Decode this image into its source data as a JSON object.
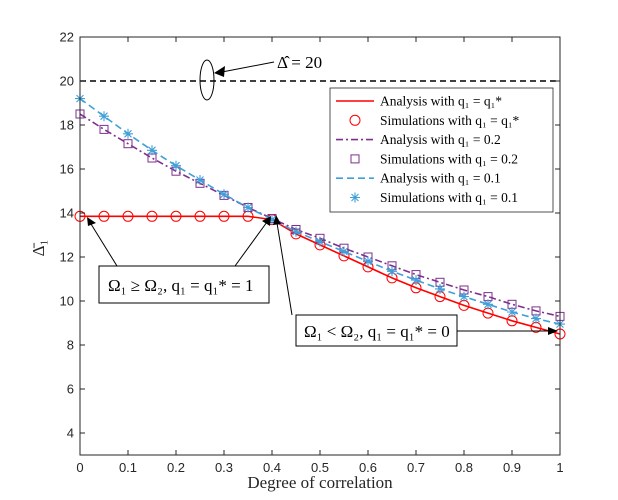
{
  "chart_data": {
    "type": "line",
    "title": "",
    "xlabel": "Degree of correlation",
    "ylabel": "Δ̄₁",
    "xlim": [
      0,
      1
    ],
    "ylim": [
      3,
      22
    ],
    "xticks": [
      "0",
      "0.1",
      "0.2",
      "0.3",
      "0.4",
      "0.5",
      "0.6",
      "0.7",
      "0.8",
      "0.9",
      "1"
    ],
    "yticks": [
      "4",
      "6",
      "8",
      "10",
      "12",
      "14",
      "16",
      "18",
      "20",
      "22"
    ],
    "grid": false,
    "legend_position": "top-right",
    "reference_line": {
      "y": 20,
      "label": "Δ̂ = 20"
    },
    "x": [
      0,
      0.05,
      0.1,
      0.15,
      0.2,
      0.25,
      0.3,
      0.35,
      0.4,
      0.45,
      0.5,
      0.55,
      0.6,
      0.65,
      0.7,
      0.75,
      0.8,
      0.85,
      0.9,
      0.95,
      1
    ],
    "series": [
      {
        "name": "Analysis with q₁ = q₁*",
        "kind": "line",
        "color": "#ff0000",
        "dash": "solid",
        "values": [
          13.85,
          13.85,
          13.85,
          13.85,
          13.85,
          13.85,
          13.85,
          13.85,
          13.7,
          13.05,
          12.55,
          12.05,
          11.55,
          11.05,
          10.6,
          10.2,
          9.8,
          9.45,
          9.1,
          8.8,
          8.5
        ]
      },
      {
        "name": "Simulations with q₁ = q₁*",
        "kind": "marker",
        "marker": "circle",
        "color": "#ff0000",
        "values": [
          13.85,
          13.85,
          13.85,
          13.85,
          13.85,
          13.85,
          13.85,
          13.85,
          13.7,
          13.05,
          12.55,
          12.05,
          11.55,
          11.05,
          10.6,
          10.2,
          9.8,
          9.45,
          9.1,
          8.8,
          8.5
        ]
      },
      {
        "name": "Analysis with q₁ = 0.2",
        "kind": "line",
        "color": "#7e2f8e",
        "dash": "dashdot",
        "values": [
          18.5,
          17.8,
          17.15,
          16.5,
          15.9,
          15.35,
          14.8,
          14.25,
          13.75,
          13.25,
          12.85,
          12.4,
          12.0,
          11.6,
          11.2,
          10.85,
          10.5,
          10.2,
          9.85,
          9.55,
          9.3
        ]
      },
      {
        "name": "Simulations with q₁ = 0.2",
        "kind": "marker",
        "marker": "square",
        "color": "#7e2f8e",
        "values": [
          18.5,
          17.8,
          17.15,
          16.5,
          15.9,
          15.35,
          14.8,
          14.25,
          13.75,
          13.25,
          12.85,
          12.4,
          12.0,
          11.6,
          11.2,
          10.85,
          10.5,
          10.2,
          9.85,
          9.55,
          9.3
        ]
      },
      {
        "name": "Analysis with q₁ = 0.1",
        "kind": "line",
        "color": "#3f9fd8",
        "dash": "dashed",
        "values": [
          19.2,
          18.4,
          17.6,
          16.85,
          16.15,
          15.5,
          14.85,
          14.25,
          13.7,
          13.15,
          12.7,
          12.25,
          11.8,
          11.35,
          10.95,
          10.55,
          10.2,
          9.85,
          9.5,
          9.2,
          8.95
        ]
      },
      {
        "name": "Simulations with q₁ = 0.1",
        "kind": "marker",
        "marker": "asterisk",
        "color": "#3f9fd8",
        "values": [
          19.2,
          18.4,
          17.6,
          16.85,
          16.15,
          15.5,
          14.85,
          14.25,
          13.7,
          13.15,
          12.7,
          12.25,
          11.8,
          11.35,
          10.95,
          10.55,
          10.2,
          9.85,
          9.5,
          9.2,
          8.95
        ]
      }
    ],
    "annotations": [
      {
        "text": "Ω₁ ≥ Ω₂, q₁ = q₁* = 1"
      },
      {
        "text": "Ω₁ < Ω₂, q₁ = q₁* = 0"
      }
    ]
  }
}
